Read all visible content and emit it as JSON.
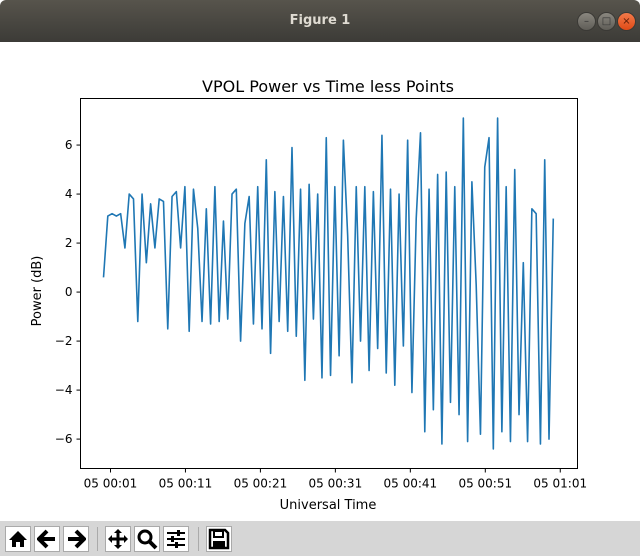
{
  "window": {
    "title": "Figure 1"
  },
  "toolbar": {
    "buttons": [
      "home-icon",
      "back-arrow-icon",
      "forward-arrow-icon",
      "pan-icon",
      "zoom-icon",
      "configure-subplots-icon",
      "save-icon"
    ]
  },
  "chart_data": {
    "type": "line",
    "title": "VPOL Power vs Time less Points",
    "xlabel": "Universal Time",
    "ylabel": "Power (dB)",
    "color": "#1f77b4",
    "x_units": "minutes after 05 00:00",
    "x_range_of_data": [
      0.07,
      60.07
    ],
    "xlim": [
      -3.0,
      63.3
    ],
    "ylim": [
      -7.2,
      7.9
    ],
    "xticks": [
      1,
      11,
      21,
      31,
      41,
      51,
      61
    ],
    "xtick_labels": [
      "05 00:01",
      "05 00:11",
      "05 00:21",
      "05 00:31",
      "05 00:41",
      "05 00:51",
      "05 01:01"
    ],
    "yticks": [
      -6,
      -4,
      -2,
      0,
      2,
      4,
      6
    ],
    "ytick_labels": [
      "−6",
      "−4",
      "−2",
      "0",
      "2",
      "4",
      "6"
    ],
    "y": [
      0.6,
      3.1,
      3.2,
      3.1,
      3.2,
      1.8,
      4.0,
      3.8,
      -1.2,
      4.0,
      1.2,
      3.6,
      1.8,
      3.8,
      3.7,
      -1.5,
      3.9,
      4.1,
      1.8,
      4.3,
      -1.6,
      4.2,
      2.6,
      -1.2,
      3.4,
      -1.3,
      4.3,
      -1.2,
      2.9,
      -1.1,
      4.0,
      4.2,
      -2.0,
      2.8,
      3.9,
      -1.3,
      4.3,
      -1.5,
      5.4,
      -2.5,
      4.1,
      -1.2,
      3.9,
      -1.6,
      5.9,
      -1.8,
      4.2,
      -3.6,
      4.4,
      -1.1,
      4.0,
      -3.5,
      6.3,
      -3.4,
      4.3,
      -2.6,
      6.2,
      2.3,
      -3.7,
      4.3,
      -2.0,
      4.3,
      -3.2,
      4.1,
      -2.3,
      6.4,
      -3.3,
      4.2,
      -3.8,
      4.0,
      -2.2,
      6.2,
      -4.1,
      3.0,
      6.5,
      -5.7,
      4.2,
      -4.8,
      4.8,
      -6.2,
      4.9,
      -4.5,
      4.3,
      -5.0,
      7.1,
      -6.1,
      4.5,
      0.3,
      -5.8,
      5.1,
      6.3,
      -6.4,
      7.1,
      -5.7,
      4.3,
      -6.1,
      5.0,
      -5.0,
      1.2,
      -6.1,
      3.4,
      3.2,
      -6.2,
      5.4,
      -6.0,
      3.0
    ]
  }
}
